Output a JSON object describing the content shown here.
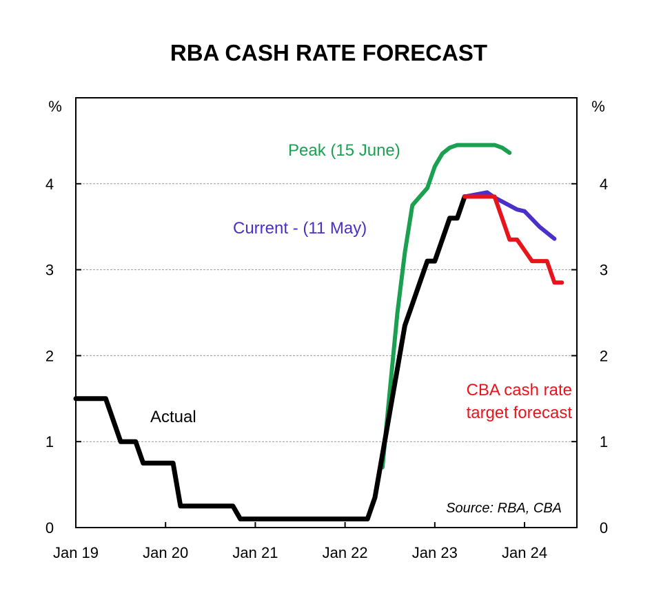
{
  "chart_data": {
    "type": "line",
    "title": "RBA CASH RATE FORECAST",
    "ylabel_left": "%",
    "ylabel_right": "%",
    "xlim": [
      "2019-01",
      "2024-08"
    ],
    "ylim": [
      0,
      5
    ],
    "grid": "horizontal dashed",
    "x_ticks": [
      {
        "date": "2019-01",
        "label": "Jan 19"
      },
      {
        "date": "2020-01",
        "label": "Jan 20"
      },
      {
        "date": "2021-01",
        "label": "Jan 21"
      },
      {
        "date": "2022-01",
        "label": "Jan 22"
      },
      {
        "date": "2023-01",
        "label": "Jan 23"
      },
      {
        "date": "2024-01",
        "label": "Jan 24"
      }
    ],
    "y_ticks": [
      {
        "value": 0,
        "label": "0"
      },
      {
        "value": 1,
        "label": "1"
      },
      {
        "value": 2,
        "label": "2"
      },
      {
        "value": 3,
        "label": "3"
      },
      {
        "value": 4,
        "label": "4"
      }
    ],
    "series": [
      {
        "name": "Actual",
        "color": "#000000",
        "label_lines": [
          "Actual"
        ],
        "points": [
          [
            "2019-01",
            1.5
          ],
          [
            "2019-05",
            1.5
          ],
          [
            "2019-07",
            1.0
          ],
          [
            "2019-09",
            1.0
          ],
          [
            "2019-10",
            0.75
          ],
          [
            "2020-02",
            0.75
          ],
          [
            "2020-03",
            0.25
          ],
          [
            "2020-10",
            0.25
          ],
          [
            "2020-11",
            0.1
          ],
          [
            "2022-04",
            0.1
          ],
          [
            "2022-05",
            0.35
          ],
          [
            "2022-06",
            0.85
          ],
          [
            "2022-07",
            1.35
          ],
          [
            "2022-08",
            1.85
          ],
          [
            "2022-09",
            2.35
          ],
          [
            "2022-10",
            2.6
          ],
          [
            "2022-11",
            2.85
          ],
          [
            "2022-12",
            3.1
          ],
          [
            "2023-01",
            3.1
          ],
          [
            "2023-02",
            3.35
          ],
          [
            "2023-03",
            3.6
          ],
          [
            "2023-04",
            3.6
          ],
          [
            "2023-05",
            3.85
          ]
        ]
      },
      {
        "name": "Peak (15 June)",
        "color": "#1aa050",
        "label_lines": [
          "Peak (15 June)"
        ],
        "points": [
          [
            "2022-06",
            0.7
          ],
          [
            "2022-07",
            1.6
          ],
          [
            "2022-08",
            2.5
          ],
          [
            "2022-09",
            3.2
          ],
          [
            "2022-10",
            3.75
          ],
          [
            "2022-11",
            3.85
          ],
          [
            "2022-12",
            3.95
          ],
          [
            "2023-01",
            4.2
          ],
          [
            "2023-02",
            4.35
          ],
          [
            "2023-03",
            4.42
          ],
          [
            "2023-04",
            4.45
          ],
          [
            "2023-09",
            4.45
          ],
          [
            "2023-10",
            4.42
          ],
          [
            "2023-11",
            4.36
          ]
        ]
      },
      {
        "name": "Current - (11 May)",
        "color": "#4b2fc8",
        "label_lines": [
          "Current - (11 May)"
        ],
        "points": [
          [
            "2023-05",
            3.85
          ],
          [
            "2023-08",
            3.9
          ],
          [
            "2023-09",
            3.84
          ],
          [
            "2023-12",
            3.7
          ],
          [
            "2024-01",
            3.68
          ],
          [
            "2024-03",
            3.5
          ],
          [
            "2024-05",
            3.36
          ]
        ]
      },
      {
        "name": "CBA cash rate target forecast",
        "color": "#e8141c",
        "label_lines": [
          "CBA cash rate",
          "target forecast"
        ],
        "points": [
          [
            "2023-05",
            3.85
          ],
          [
            "2023-09",
            3.85
          ],
          [
            "2023-11",
            3.35
          ],
          [
            "2023-12",
            3.35
          ],
          [
            "2024-02",
            3.1
          ],
          [
            "2024-04",
            3.1
          ],
          [
            "2024-05",
            2.85
          ],
          [
            "2024-06",
            2.85
          ]
        ]
      }
    ],
    "source": "Source: RBA, CBA"
  }
}
